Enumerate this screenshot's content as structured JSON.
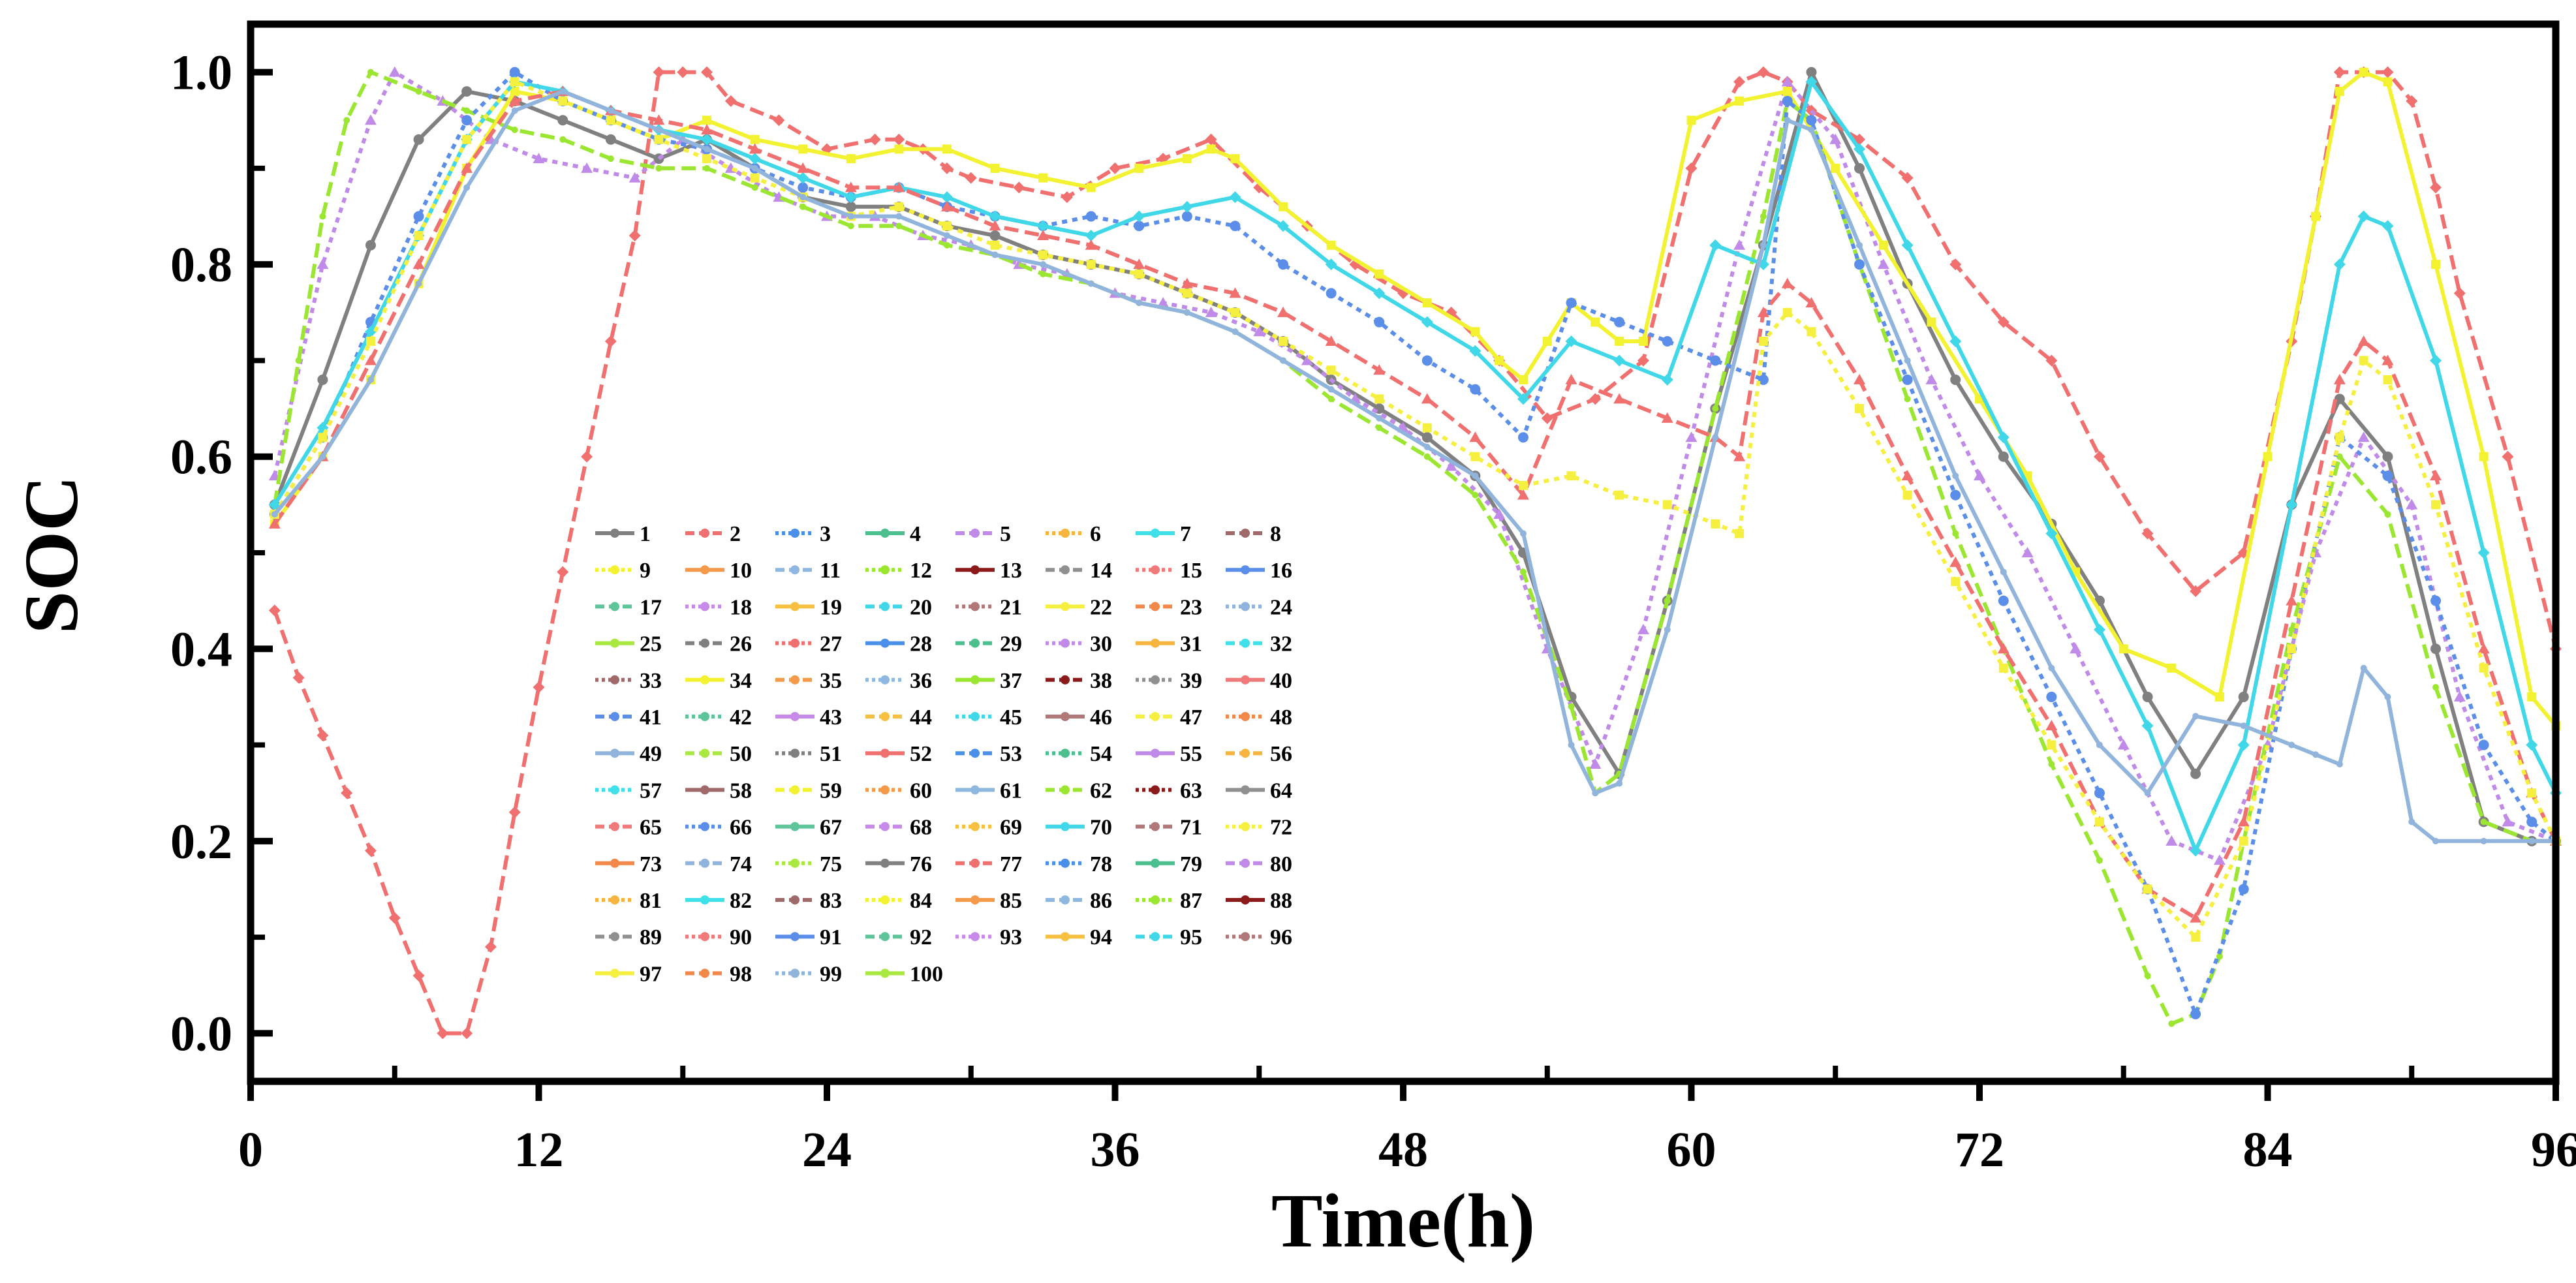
{
  "chart_data": {
    "type": "line",
    "title": "",
    "xlabel": "Time(h)",
    "ylabel": "SOC",
    "xlim": [
      0,
      96
    ],
    "ylim": [
      -0.05,
      1.05
    ],
    "xticks": [
      0,
      12,
      24,
      36,
      48,
      60,
      72,
      84,
      96
    ],
    "xtick_labels": [
      "0",
      "12",
      "24",
      "36",
      "48",
      "60",
      "72",
      "84",
      "96"
    ],
    "yticks": [
      0.0,
      0.2,
      0.4,
      0.6,
      0.8,
      1.0
    ],
    "ytick_labels": [
      "0.0",
      "0.2",
      "0.4",
      "0.6",
      "0.8",
      "1.0"
    ],
    "grid": false,
    "legend_position": "inside-lower-left",
    "legend_columns": 8,
    "series_count": 100,
    "series_names": [
      "1",
      "2",
      "3",
      "4",
      "5",
      "6",
      "7",
      "8",
      "9",
      "10",
      "11",
      "12",
      "13",
      "14",
      "15",
      "16",
      "17",
      "18",
      "19",
      "20",
      "21",
      "22",
      "23",
      "24",
      "25",
      "26",
      "27",
      "28",
      "29",
      "30",
      "31",
      "32",
      "33",
      "34",
      "35",
      "36",
      "37",
      "38",
      "39",
      "40",
      "41",
      "42",
      "43",
      "44",
      "45",
      "46",
      "47",
      "48",
      "49",
      "50",
      "51",
      "52",
      "53",
      "54",
      "55",
      "56",
      "57",
      "58",
      "59",
      "60",
      "61",
      "62",
      "63",
      "64",
      "65",
      "66",
      "67",
      "68",
      "69",
      "70",
      "71",
      "72",
      "73",
      "74",
      "75",
      "76",
      "77",
      "78",
      "79",
      "80",
      "81",
      "82",
      "83",
      "84",
      "85",
      "86",
      "87",
      "88",
      "89",
      "90",
      "91",
      "92",
      "93",
      "94",
      "95",
      "96",
      "97",
      "98",
      "99",
      "100"
    ],
    "palette": [
      "#808080",
      "#f07070",
      "#4a8fe8",
      "#4cbf8f",
      "#c08ae8",
      "#f7b43e",
      "#3fe0e8",
      "#a06a6a",
      "#f2f230",
      "#f59a4a",
      "#8fb8e0",
      "#9ae630",
      "#8b1a1a",
      "#909090",
      "#f07a7a",
      "#5a8ee8",
      "#5ec49a",
      "#c88ae8",
      "#f7c040",
      "#40d8e8",
      "#b07878",
      "#f5f040",
      "#f2884a",
      "#90b4dc",
      "#a8e840"
    ],
    "representative_series": [
      {
        "name": "1",
        "x": [
          1,
          3,
          5,
          7,
          9,
          11,
          13,
          15,
          17,
          19,
          21,
          23,
          25,
          27,
          29,
          31,
          33,
          35,
          37,
          39,
          41,
          43,
          45,
          47,
          49,
          51,
          53,
          55,
          57,
          59,
          61,
          63,
          65,
          67,
          69,
          71,
          73,
          75,
          77,
          79,
          81,
          83,
          85,
          87,
          89,
          91,
          93,
          95,
          96
        ],
        "y": [
          0.55,
          0.68,
          0.82,
          0.93,
          0.98,
          0.97,
          0.95,
          0.93,
          0.91,
          0.93,
          0.9,
          0.87,
          0.86,
          0.86,
          0.84,
          0.83,
          0.81,
          0.8,
          0.79,
          0.77,
          0.75,
          0.72,
          0.68,
          0.65,
          0.62,
          0.58,
          0.5,
          0.35,
          0.27,
          0.45,
          0.65,
          0.82,
          1.0,
          0.9,
          0.78,
          0.68,
          0.6,
          0.53,
          0.45,
          0.35,
          0.27,
          0.35,
          0.55,
          0.66,
          0.6,
          0.4,
          0.22,
          0.2,
          0.2
        ]
      },
      {
        "name": "2",
        "x": [
          1,
          2,
          3,
          4,
          5,
          6,
          7,
          8,
          9,
          10,
          11,
          12,
          13,
          14,
          15,
          16,
          17,
          18,
          19,
          20,
          22,
          24,
          26,
          27,
          28,
          29,
          30,
          32,
          34,
          36,
          38,
          40,
          42,
          44,
          46,
          48,
          50,
          52,
          54,
          56,
          58,
          60,
          62,
          63,
          64,
          65,
          67,
          69,
          71,
          73,
          75,
          77,
          79,
          81,
          83,
          85,
          86,
          87,
          88,
          89,
          90,
          91,
          92,
          94,
          96
        ],
        "y": [
          0.44,
          0.37,
          0.31,
          0.25,
          0.19,
          0.12,
          0.06,
          0.0,
          0.0,
          0.09,
          0.23,
          0.36,
          0.48,
          0.6,
          0.72,
          0.83,
          1.0,
          1.0,
          1.0,
          0.97,
          0.95,
          0.92,
          0.93,
          0.93,
          0.92,
          0.9,
          0.89,
          0.88,
          0.87,
          0.9,
          0.91,
          0.93,
          0.88,
          0.84,
          0.8,
          0.77,
          0.75,
          0.7,
          0.64,
          0.66,
          0.7,
          0.9,
          0.99,
          1.0,
          0.99,
          0.96,
          0.93,
          0.89,
          0.8,
          0.74,
          0.7,
          0.6,
          0.52,
          0.46,
          0.5,
          0.72,
          0.85,
          1.0,
          1.0,
          1.0,
          0.97,
          0.88,
          0.77,
          0.6,
          0.4
        ]
      },
      {
        "name": "5",
        "x": [
          1,
          3,
          5,
          6,
          8,
          10,
          12,
          14,
          16,
          18,
          20,
          22,
          24,
          26,
          28,
          30,
          32,
          34,
          36,
          38,
          40,
          42,
          44,
          46,
          48,
          50,
          52,
          54,
          56,
          58,
          60,
          62,
          64,
          66,
          68,
          70,
          72,
          74,
          76,
          78,
          80,
          82,
          84,
          86,
          88,
          90,
          92,
          94,
          96
        ],
        "y": [
          0.58,
          0.8,
          0.95,
          1.0,
          0.97,
          0.93,
          0.91,
          0.9,
          0.89,
          0.93,
          0.9,
          0.87,
          0.85,
          0.85,
          0.83,
          0.82,
          0.8,
          0.79,
          0.77,
          0.76,
          0.75,
          0.73,
          0.7,
          0.66,
          0.63,
          0.59,
          0.54,
          0.4,
          0.28,
          0.42,
          0.62,
          0.82,
          0.99,
          0.93,
          0.8,
          0.68,
          0.58,
          0.5,
          0.4,
          0.3,
          0.2,
          0.18,
          0.3,
          0.5,
          0.62,
          0.55,
          0.35,
          0.22,
          0.2
        ]
      },
      {
        "name": "9",
        "x": [
          1,
          3,
          5,
          7,
          9,
          11,
          13,
          15,
          17,
          19,
          21,
          23,
          25,
          27,
          29,
          31,
          33,
          35,
          37,
          39,
          40,
          41,
          43,
          45,
          47,
          49,
          51,
          52,
          53,
          54,
          55,
          56,
          57,
          58,
          60,
          62,
          64,
          66,
          68,
          70,
          72,
          74,
          76,
          78,
          80,
          82,
          84,
          86,
          87,
          88,
          89,
          91,
          93,
          95,
          96
        ],
        "y": [
          0.53,
          0.6,
          0.68,
          0.78,
          0.9,
          0.98,
          0.97,
          0.95,
          0.93,
          0.95,
          0.93,
          0.92,
          0.91,
          0.92,
          0.92,
          0.9,
          0.89,
          0.88,
          0.9,
          0.91,
          0.92,
          0.91,
          0.86,
          0.82,
          0.79,
          0.76,
          0.73,
          0.7,
          0.68,
          0.72,
          0.76,
          0.74,
          0.72,
          0.72,
          0.95,
          0.97,
          0.98,
          0.9,
          0.82,
          0.74,
          0.66,
          0.58,
          0.48,
          0.4,
          0.38,
          0.35,
          0.6,
          0.85,
          0.98,
          1.0,
          0.99,
          0.8,
          0.6,
          0.35,
          0.32
        ]
      },
      {
        "name": "12",
        "x": [
          1,
          2,
          3,
          4,
          5,
          7,
          9,
          11,
          13,
          15,
          17,
          19,
          21,
          23,
          25,
          27,
          29,
          31,
          33,
          35,
          37,
          39,
          41,
          43,
          45,
          47,
          49,
          51,
          53,
          55,
          56,
          57,
          59,
          61,
          63,
          64,
          65,
          67,
          69,
          71,
          73,
          75,
          77,
          79,
          80,
          81,
          82,
          83,
          85,
          87,
          89,
          91,
          93,
          95,
          96
        ],
        "y": [
          0.55,
          0.7,
          0.85,
          0.95,
          1.0,
          0.98,
          0.96,
          0.94,
          0.93,
          0.91,
          0.9,
          0.9,
          0.88,
          0.86,
          0.84,
          0.84,
          0.82,
          0.81,
          0.79,
          0.78,
          0.76,
          0.75,
          0.73,
          0.7,
          0.66,
          0.63,
          0.6,
          0.56,
          0.48,
          0.34,
          0.25,
          0.27,
          0.45,
          0.65,
          0.85,
          0.97,
          0.95,
          0.8,
          0.66,
          0.52,
          0.4,
          0.28,
          0.18,
          0.06,
          0.01,
          0.02,
          0.08,
          0.2,
          0.42,
          0.6,
          0.54,
          0.36,
          0.22,
          0.2,
          0.2
        ]
      },
      {
        "name": "16",
        "x": [
          1,
          3,
          5,
          7,
          9,
          11,
          13,
          15,
          17,
          19,
          21,
          23,
          25,
          27,
          29,
          31,
          33,
          35,
          37,
          39,
          41,
          43,
          45,
          47,
          49,
          51,
          53,
          55,
          57,
          59,
          61,
          63,
          64,
          65,
          67,
          69,
          71,
          73,
          75,
          77,
          79,
          81,
          83,
          85,
          87,
          89,
          91,
          93,
          95,
          96
        ],
        "y": [
          0.54,
          0.62,
          0.74,
          0.85,
          0.95,
          1.0,
          0.97,
          0.95,
          0.93,
          0.92,
          0.9,
          0.88,
          0.87,
          0.88,
          0.86,
          0.85,
          0.84,
          0.85,
          0.84,
          0.85,
          0.84,
          0.8,
          0.77,
          0.74,
          0.7,
          0.67,
          0.62,
          0.76,
          0.74,
          0.72,
          0.7,
          0.68,
          0.97,
          0.95,
          0.8,
          0.68,
          0.56,
          0.45,
          0.35,
          0.25,
          0.15,
          0.02,
          0.15,
          0.4,
          0.62,
          0.58,
          0.45,
          0.3,
          0.22,
          0.2
        ]
      },
      {
        "name": "20",
        "x": [
          1,
          3,
          5,
          7,
          9,
          11,
          13,
          15,
          17,
          19,
          21,
          23,
          25,
          27,
          29,
          31,
          33,
          35,
          37,
          39,
          41,
          43,
          45,
          47,
          49,
          51,
          53,
          55,
          57,
          59,
          61,
          63,
          65,
          67,
          69,
          71,
          73,
          75,
          77,
          79,
          81,
          83,
          85,
          87,
          88,
          89,
          91,
          93,
          95,
          96
        ],
        "y": [
          0.55,
          0.63,
          0.73,
          0.83,
          0.93,
          0.99,
          0.98,
          0.96,
          0.94,
          0.93,
          0.91,
          0.89,
          0.87,
          0.88,
          0.87,
          0.85,
          0.84,
          0.83,
          0.85,
          0.86,
          0.87,
          0.84,
          0.8,
          0.77,
          0.74,
          0.71,
          0.66,
          0.72,
          0.7,
          0.68,
          0.82,
          0.8,
          0.99,
          0.92,
          0.82,
          0.72,
          0.62,
          0.52,
          0.42,
          0.32,
          0.19,
          0.3,
          0.55,
          0.8,
          0.85,
          0.84,
          0.7,
          0.5,
          0.3,
          0.25
        ]
      },
      {
        "name": "27",
        "x": [
          1,
          3,
          5,
          7,
          9,
          11,
          13,
          15,
          17,
          19,
          21,
          23,
          25,
          27,
          29,
          31,
          33,
          35,
          37,
          39,
          41,
          43,
          45,
          47,
          49,
          51,
          53,
          55,
          57,
          59,
          61,
          62,
          63,
          64,
          65,
          67,
          69,
          71,
          73,
          75,
          77,
          79,
          81,
          83,
          85,
          87,
          88,
          89,
          91,
          93,
          95,
          96
        ],
        "y": [
          0.53,
          0.6,
          0.7,
          0.8,
          0.9,
          0.97,
          0.98,
          0.96,
          0.95,
          0.94,
          0.92,
          0.9,
          0.88,
          0.88,
          0.86,
          0.84,
          0.83,
          0.82,
          0.8,
          0.78,
          0.77,
          0.75,
          0.72,
          0.69,
          0.66,
          0.62,
          0.56,
          0.68,
          0.66,
          0.64,
          0.62,
          0.6,
          0.75,
          0.78,
          0.76,
          0.68,
          0.58,
          0.49,
          0.4,
          0.32,
          0.22,
          0.15,
          0.12,
          0.22,
          0.45,
          0.68,
          0.72,
          0.7,
          0.58,
          0.4,
          0.25,
          0.2
        ]
      },
      {
        "name": "47",
        "x": [
          1,
          3,
          5,
          7,
          9,
          11,
          13,
          15,
          17,
          19,
          21,
          23,
          25,
          27,
          29,
          31,
          33,
          35,
          37,
          39,
          41,
          43,
          45,
          47,
          49,
          51,
          53,
          55,
          57,
          59,
          61,
          62,
          63,
          64,
          65,
          67,
          69,
          71,
          73,
          75,
          77,
          79,
          81,
          83,
          85,
          87,
          88,
          89,
          91,
          93,
          95,
          96
        ],
        "y": [
          0.54,
          0.62,
          0.72,
          0.83,
          0.93,
          0.99,
          0.97,
          0.95,
          0.93,
          0.91,
          0.89,
          0.87,
          0.85,
          0.86,
          0.84,
          0.82,
          0.81,
          0.8,
          0.79,
          0.77,
          0.75,
          0.72,
          0.69,
          0.66,
          0.63,
          0.6,
          0.57,
          0.58,
          0.56,
          0.55,
          0.53,
          0.52,
          0.72,
          0.75,
          0.73,
          0.65,
          0.56,
          0.47,
          0.38,
          0.3,
          0.22,
          0.15,
          0.1,
          0.2,
          0.4,
          0.62,
          0.7,
          0.68,
          0.55,
          0.38,
          0.25,
          0.2
        ]
      },
      {
        "name": "74",
        "x": [
          1,
          3,
          5,
          7,
          9,
          11,
          13,
          15,
          17,
          19,
          21,
          23,
          25,
          27,
          29,
          31,
          33,
          35,
          37,
          39,
          41,
          43,
          45,
          47,
          49,
          51,
          53,
          55,
          56,
          57,
          59,
          61,
          63,
          64,
          65,
          67,
          69,
          71,
          73,
          75,
          77,
          79,
          81,
          83,
          85,
          86,
          87,
          88,
          89,
          90,
          91,
          93,
          95,
          96
        ],
        "y": [
          0.54,
          0.6,
          0.68,
          0.78,
          0.88,
          0.96,
          0.98,
          0.96,
          0.94,
          0.92,
          0.9,
          0.87,
          0.85,
          0.85,
          0.83,
          0.81,
          0.8,
          0.78,
          0.76,
          0.75,
          0.73,
          0.7,
          0.67,
          0.64,
          0.61,
          0.58,
          0.52,
          0.3,
          0.25,
          0.26,
          0.42,
          0.62,
          0.82,
          0.95,
          0.94,
          0.82,
          0.7,
          0.58,
          0.48,
          0.38,
          0.3,
          0.25,
          0.33,
          0.32,
          0.3,
          0.29,
          0.28,
          0.38,
          0.35,
          0.22,
          0.2,
          0.2,
          0.2,
          0.2
        ]
      }
    ]
  }
}
